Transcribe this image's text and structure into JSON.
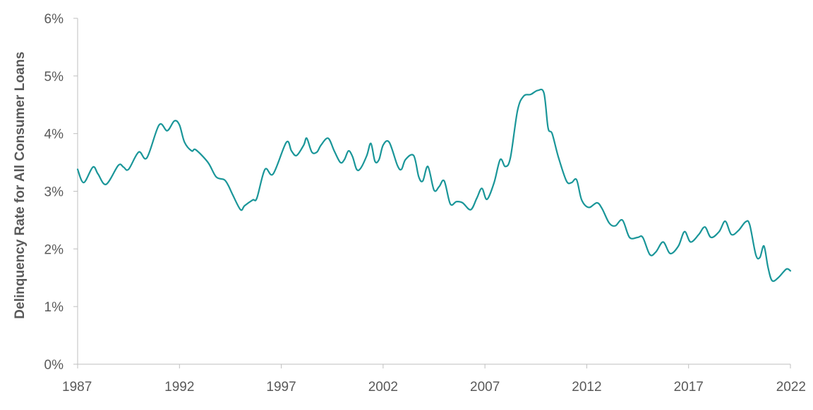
{
  "chart_data": {
    "type": "line",
    "title": "",
    "xlabel": "",
    "ylabel": "Delinquency Rate for All Consumer Loans",
    "xlim": [
      1987,
      2022
    ],
    "ylim": [
      0,
      6
    ],
    "y_ticks": [
      0,
      1,
      2,
      3,
      4,
      5,
      6
    ],
    "y_tick_labels": [
      "0%",
      "1%",
      "2%",
      "3%",
      "4%",
      "5%",
      "6%"
    ],
    "x_ticks": [
      1987,
      1992,
      1997,
      2002,
      2007,
      2012,
      2017,
      2022
    ],
    "x_tick_labels": [
      "1987",
      "1992",
      "1997",
      "2002",
      "2007",
      "2012",
      "2017",
      "2022"
    ],
    "grid": false,
    "legend": "none",
    "line_color": "#1a9699",
    "series": [
      {
        "x": [
          1987,
          1987.3,
          1987.75,
          1988,
          1988.4,
          1989,
          1989.25,
          1989.5,
          1990,
          1990.4,
          1991,
          1991.4,
          1991.75,
          1992,
          1992.25,
          1992.6,
          1992.8,
          1993.4,
          1993.8,
          1994.2,
          1994.4,
          1994.6,
          1995,
          1995.2,
          1995.6,
          1995.8,
          1996.2,
          1996.6,
          1997.25,
          1997.5,
          1997.75,
          1998.1,
          1998.25,
          1998.5,
          1998.75,
          1998.95,
          1999.3,
          1999.6,
          1999.9,
          2000.1,
          2000.3,
          2000.5,
          2000.7,
          2000.9,
          2001.2,
          2001.4,
          2001.6,
          2001.8,
          2002,
          2002.3,
          2002.7,
          2002.9,
          2003.1,
          2003.5,
          2003.75,
          2003.95,
          2004.2,
          2004.5,
          2004.75,
          2005,
          2005.3,
          2005.6,
          2005.9,
          2006.3,
          2006.6,
          2006.85,
          2007.1,
          2007.45,
          2007.75,
          2008,
          2008.25,
          2008.6,
          2008.9,
          2009.25,
          2009.6,
          2009.9,
          2010.1,
          2010.3,
          2010.6,
          2011,
          2011.25,
          2011.5,
          2011.75,
          2012.1,
          2012.5,
          2012.75,
          2013.1,
          2013.4,
          2013.75,
          2014.1,
          2014.5,
          2014.75,
          2015.1,
          2015.4,
          2015.75,
          2016.1,
          2016.5,
          2016.8,
          2017.1,
          2017.5,
          2017.8,
          2018.1,
          2018.5,
          2018.8,
          2019.1,
          2019.45,
          2019.8,
          2020,
          2020.3,
          2020.5,
          2020.7,
          2020.9,
          2021.1,
          2021.4,
          2021.8,
          2022
        ],
        "values": [
          3.38,
          3.15,
          3.42,
          3.3,
          3.12,
          3.45,
          3.42,
          3.38,
          3.68,
          3.58,
          4.15,
          4.05,
          4.22,
          4.15,
          3.85,
          3.7,
          3.72,
          3.5,
          3.25,
          3.2,
          3.1,
          2.95,
          2.68,
          2.75,
          2.85,
          2.88,
          3.38,
          3.3,
          3.85,
          3.7,
          3.62,
          3.8,
          3.92,
          3.68,
          3.68,
          3.8,
          3.92,
          3.7,
          3.5,
          3.55,
          3.7,
          3.6,
          3.38,
          3.4,
          3.62,
          3.83,
          3.52,
          3.55,
          3.8,
          3.85,
          3.45,
          3.38,
          3.55,
          3.62,
          3.25,
          3.18,
          3.43,
          3.02,
          3.08,
          3.18,
          2.78,
          2.82,
          2.8,
          2.68,
          2.88,
          3.05,
          2.86,
          3.15,
          3.55,
          3.43,
          3.58,
          4.4,
          4.65,
          4.68,
          4.75,
          4.7,
          4.1,
          4.0,
          3.6,
          3.18,
          3.15,
          3.2,
          2.85,
          2.72,
          2.8,
          2.7,
          2.45,
          2.4,
          2.5,
          2.2,
          2.2,
          2.2,
          1.9,
          1.95,
          2.12,
          1.92,
          2.05,
          2.3,
          2.12,
          2.25,
          2.38,
          2.2,
          2.3,
          2.48,
          2.25,
          2.32,
          2.47,
          2.42,
          1.9,
          1.85,
          2.05,
          1.68,
          1.45,
          1.5,
          1.65,
          1.62
        ]
      }
    ]
  }
}
